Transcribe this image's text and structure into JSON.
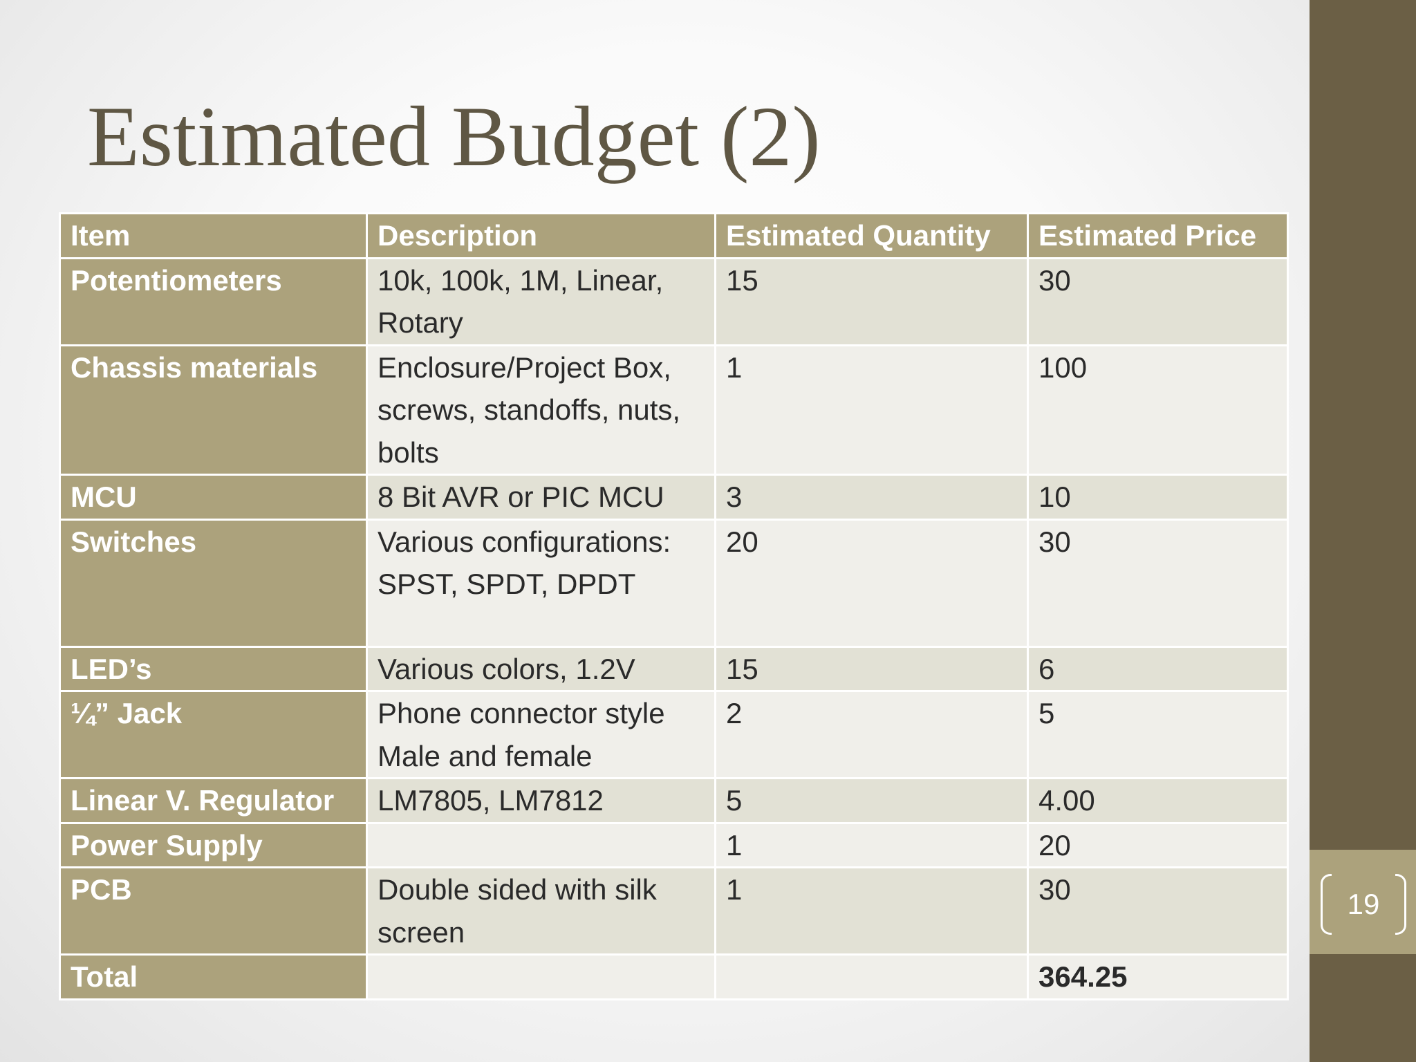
{
  "slide": {
    "title": "Estimated Budget (2)",
    "page_number": "19"
  },
  "table": {
    "headers": [
      "Item",
      "Description",
      "Estimated Quantity",
      "Estimated Price"
    ],
    "rows": [
      {
        "item": "Potentiometers",
        "description": "10k, 100k, 1M, Linear, Rotary",
        "quantity": "15",
        "price": "30"
      },
      {
        "item": "Chassis materials",
        "description": "Enclosure/Project Box, screws, standoffs, nuts, bolts",
        "quantity": "1",
        "price": "100"
      },
      {
        "item": "MCU",
        "description": "8 Bit AVR or PIC MCU",
        "quantity": "3",
        "price": "10"
      },
      {
        "item": "Switches",
        "description": "Various configurations: SPST, SPDT, DPDT",
        "quantity": "20",
        "price": "30"
      },
      {
        "item": "LED’s",
        "description": "Various colors, 1.2V",
        "quantity": "15",
        "price": "6"
      },
      {
        "item": "¼” Jack",
        "description": "Phone connector style Male and female",
        "quantity": "2",
        "price": "5"
      },
      {
        "item": "Linear V. Regulator",
        "description": "LM7805, LM7812",
        "quantity": "5",
        "price": "4.00"
      },
      {
        "item": "Power Supply",
        "description": "",
        "quantity": "1",
        "price": "20"
      },
      {
        "item": "PCB",
        "description": "Double sided with silk screen",
        "quantity": "1",
        "price": "30"
      }
    ],
    "total": {
      "label": "Total",
      "description": "",
      "quantity": "",
      "price": "364.25"
    }
  },
  "colors": {
    "sidebar": "#6b5f45",
    "accent": "#aca27c",
    "title_text": "#5f5744",
    "band_dark": "#e2e1d5",
    "band_light": "#f0efea"
  }
}
